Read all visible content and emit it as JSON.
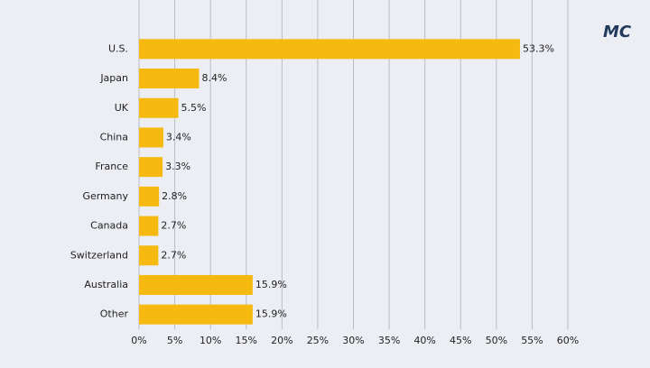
{
  "logo": "MC",
  "chart_data": {
    "type": "hbar",
    "categories": [
      "U.S.",
      "Japan",
      "UK",
      "China",
      "France",
      "Germany",
      "Canada",
      "Switzerland",
      "Australia",
      "Other"
    ],
    "values": [
      53.3,
      8.4,
      5.5,
      3.4,
      3.3,
      2.8,
      2.7,
      2.7,
      15.9,
      15.9
    ],
    "value_labels": [
      "53.3%",
      "8.4%",
      "5.5%",
      "3.4%",
      "3.3%",
      "2.8%",
      "2.7%",
      "2.7%",
      "15.9%",
      "15.9%"
    ],
    "color": "#f5b90f",
    "xlim": [
      0,
      60
    ],
    "xticks": [
      {
        "value": 0,
        "label": "0%"
      },
      {
        "value": 5,
        "label": "5%"
      },
      {
        "value": 10,
        "label": "10%"
      },
      {
        "value": 15,
        "label": "15%"
      },
      {
        "value": 20,
        "label": "20%"
      },
      {
        "value": 25,
        "label": "25%"
      },
      {
        "value": 30,
        "label": "30%"
      },
      {
        "value": 35,
        "label": "35%"
      },
      {
        "value": 40,
        "label": "40%"
      },
      {
        "value": 45,
        "label": "45%"
      },
      {
        "value": 50,
        "label": "50%"
      },
      {
        "value": 55,
        "label": "55%"
      },
      {
        "value": 60,
        "label": "60%"
      }
    ],
    "grid": true
  }
}
